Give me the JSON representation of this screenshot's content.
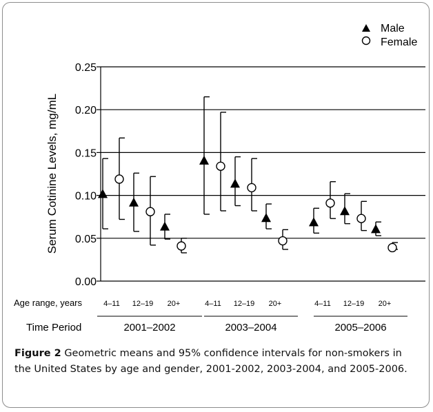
{
  "chart_data": {
    "type": "scatter",
    "ylabel": "Serum Cotinine Levels, mg/mL",
    "ylim": [
      0,
      0.25
    ],
    "yticks": [
      "0.00",
      "0.05",
      "0.10",
      "0.15",
      "0.20",
      "0.25"
    ],
    "ytick_values": [
      0,
      0.05,
      0.1,
      0.15,
      0.2,
      0.25
    ],
    "grid": "horizontal",
    "legend_position": "top-right",
    "age_row_label": "Age range, years",
    "period_row_label": "Time Period",
    "categories": [
      "4–11",
      "12–19",
      "20+",
      "4–11",
      "12–19",
      "20+",
      "4–11",
      "12–19",
      "20+"
    ],
    "periods": [
      "2001–2002",
      "2003–2004",
      "2005–2006"
    ],
    "series": [
      {
        "name": "Male",
        "marker": "filled-triangle",
        "values": [
          0.101,
          0.091,
          0.063,
          0.14,
          0.113,
          0.073,
          0.068,
          0.081,
          0.06
        ],
        "ci_low": [
          0.061,
          0.058,
          0.049,
          0.078,
          0.088,
          0.061,
          0.056,
          0.067,
          0.053
        ],
        "ci_high": [
          0.143,
          0.126,
          0.078,
          0.215,
          0.145,
          0.09,
          0.085,
          0.102,
          0.069
        ]
      },
      {
        "name": "Female",
        "marker": "open-circle",
        "values": [
          0.119,
          0.081,
          0.041,
          0.134,
          0.109,
          0.047,
          0.091,
          0.073,
          0.039
        ],
        "ci_low": [
          0.072,
          0.042,
          0.033,
          0.082,
          0.082,
          0.037,
          0.073,
          0.059,
          0.037
        ],
        "ci_high": [
          0.167,
          0.122,
          0.05,
          0.197,
          0.143,
          0.06,
          0.116,
          0.093,
          0.045
        ]
      }
    ]
  },
  "caption": {
    "label": "Figure 2",
    "text": "Geometric means and 95% confidence intervals for non-smokers in the United States by age and gender, 2001-2002, 2003-2004, and 2005-2006",
    "end": "."
  }
}
